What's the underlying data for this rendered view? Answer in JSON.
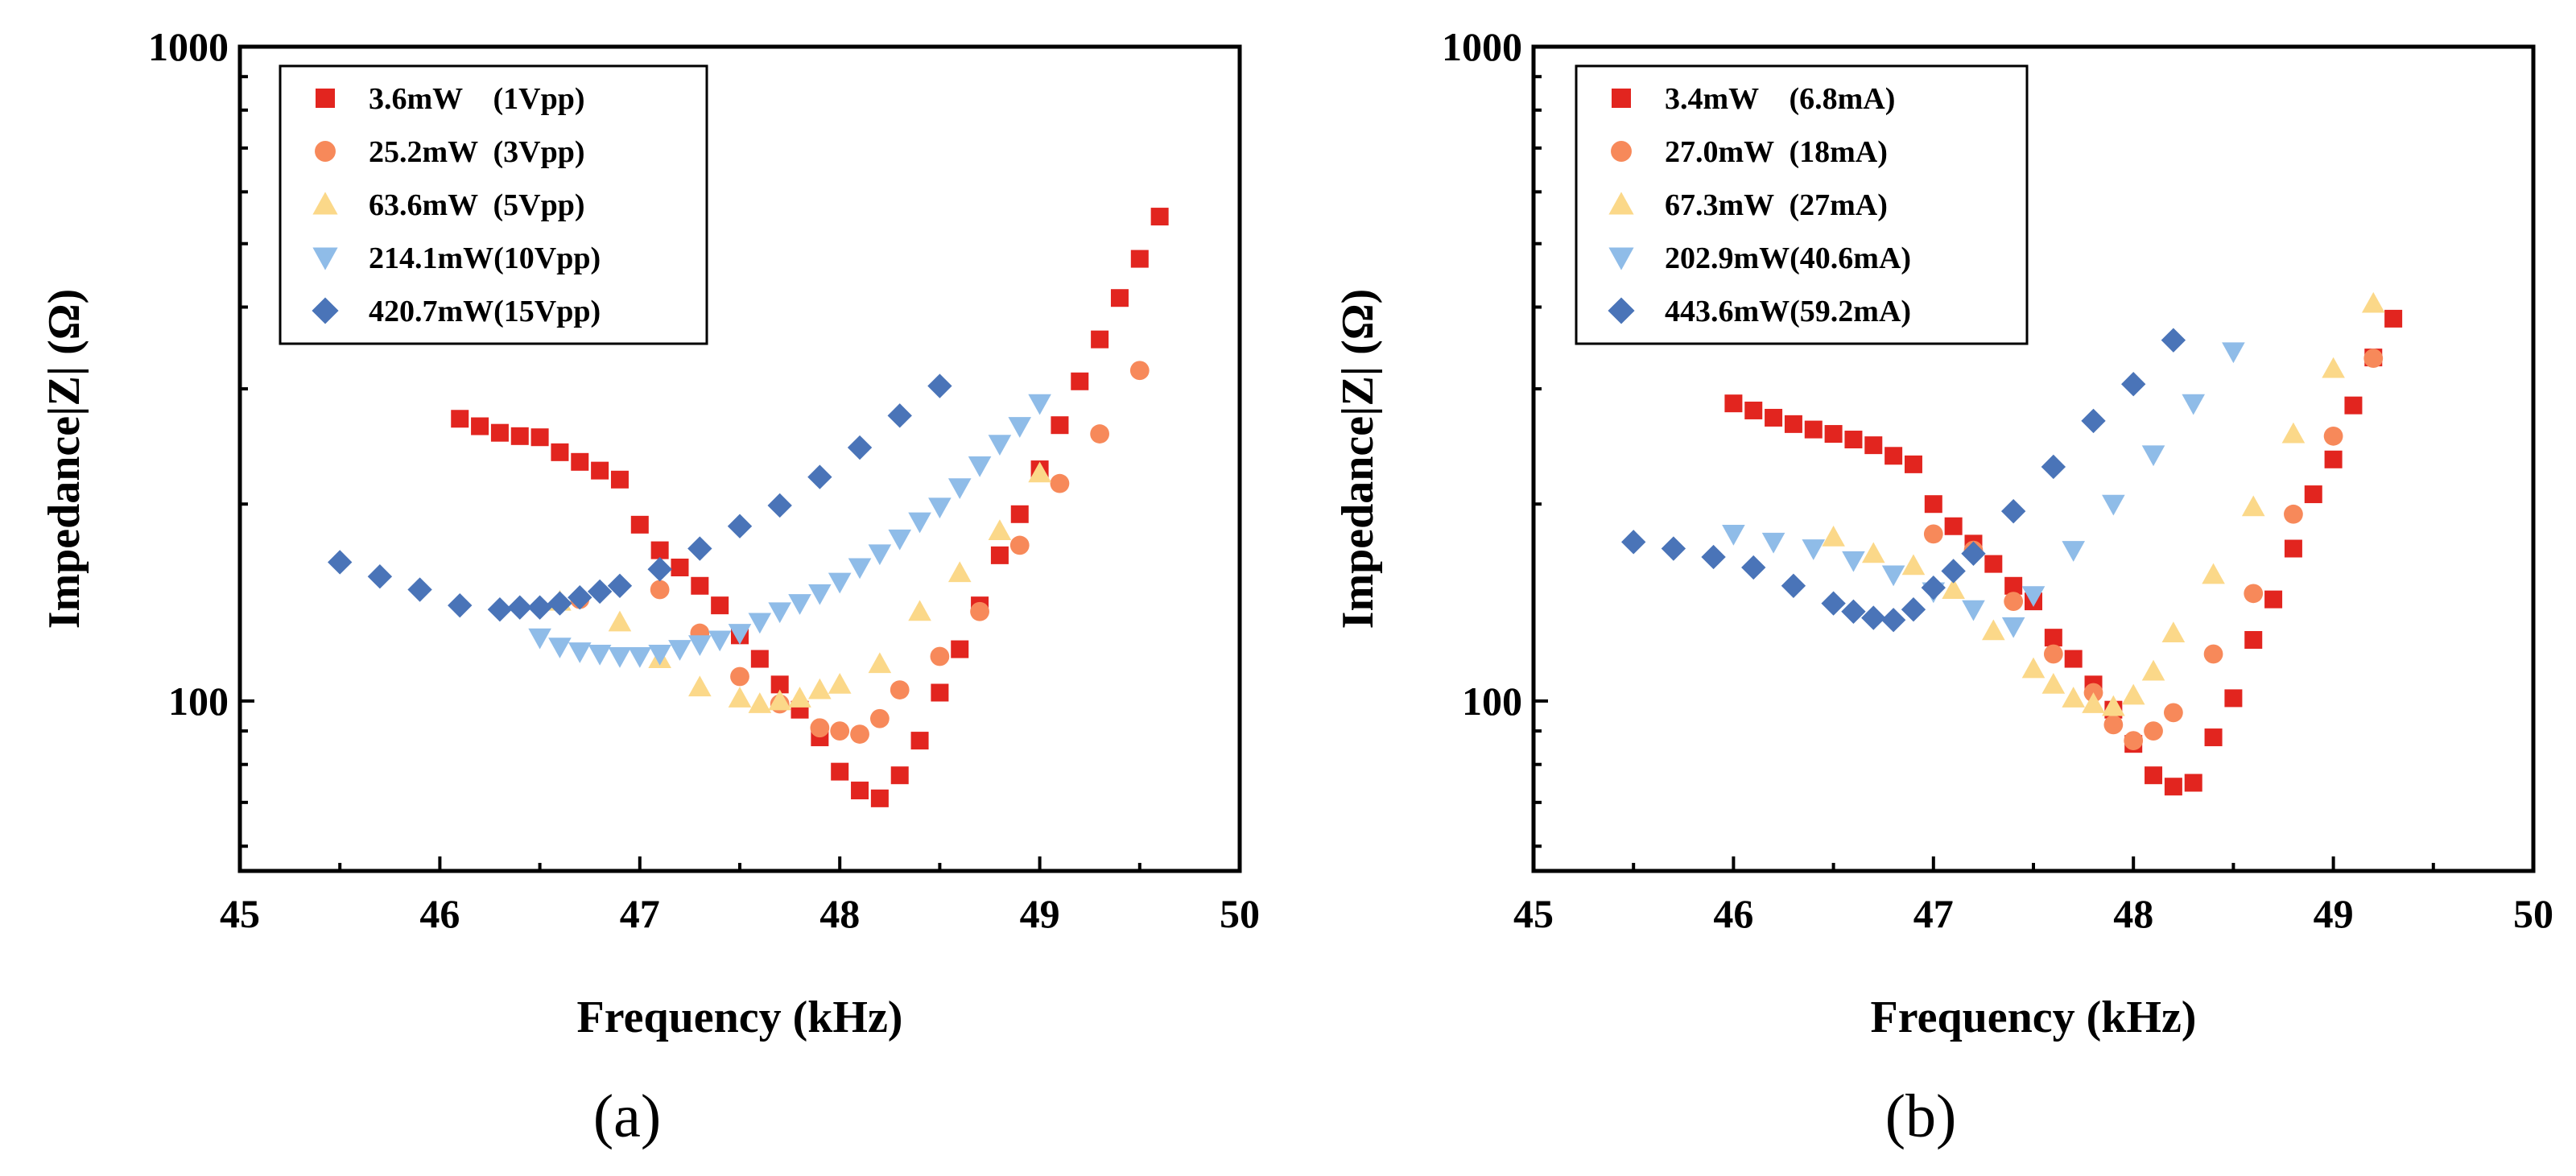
{
  "colors": {
    "s1": "#e2251f",
    "s2": "#f7895a",
    "s3": "#fbd889",
    "s4": "#8fbce8",
    "s5": "#4a74b8"
  },
  "chart_data": [
    {
      "type": "scatter",
      "panel_label": "(a)",
      "xlabel": "Frequency (kHz)",
      "ylabel": "Impedance|Z| (Ω)",
      "xlim": [
        45,
        50
      ],
      "ylim": [
        55,
        1000
      ],
      "yscale": "log",
      "xticks": [
        "45",
        "46",
        "47",
        "48",
        "49",
        "50"
      ],
      "yticks": [
        "100",
        "1000"
      ],
      "legend_position": "top-left",
      "series": [
        {
          "name": "3.6mW    (1Vpp)",
          "marker": "square",
          "color": "#e2251f",
          "x": [
            46.1,
            46.2,
            46.3,
            46.4,
            46.5,
            46.6,
            46.7,
            46.8,
            46.9,
            47.0,
            47.1,
            47.2,
            47.3,
            47.4,
            47.5,
            47.6,
            47.7,
            47.8,
            47.9,
            48.0,
            48.1,
            48.2,
            48.3,
            48.4,
            48.5,
            48.6,
            48.7,
            48.8,
            48.9,
            49.0,
            49.1,
            49.2,
            49.3,
            49.4,
            49.5,
            49.6
          ],
          "y": [
            270,
            263,
            257,
            254,
            253,
            240,
            232,
            225,
            218,
            186,
            170,
            160,
            150,
            140,
            126,
            116,
            106,
            97,
            88,
            78,
            73,
            71,
            77,
            87,
            103,
            120,
            140,
            167,
            193,
            226,
            264,
            308,
            357,
            413,
            474,
            550
          ]
        },
        {
          "name": "25.2mW  (3Vpp)",
          "marker": "circle",
          "color": "#f7895a",
          "x": [
            46.7,
            47.1,
            47.3,
            47.5,
            47.7,
            47.9,
            48.0,
            48.1,
            48.2,
            48.3,
            48.5,
            48.7,
            48.9,
            49.1,
            49.3,
            49.5
          ],
          "y": [
            143,
            148,
            127,
            109,
            99,
            91,
            90,
            89,
            94,
            104,
            117,
            137,
            173,
            215,
            256,
            320
          ]
        },
        {
          "name": "63.6mW  (5Vpp)",
          "marker": "triangle-up",
          "color": "#fbd889",
          "x": [
            46.6,
            46.9,
            47.1,
            47.3,
            47.5,
            47.6,
            47.7,
            47.8,
            47.9,
            48.0,
            48.2,
            48.4,
            48.6,
            48.8,
            49.0
          ],
          "y": [
            142,
            132,
            116,
            105,
            101,
            99,
            100,
            101,
            104,
            106,
            114,
            137,
            157,
            182,
            223
          ]
        },
        {
          "name": "214.1mW(10Vpp)",
          "marker": "triangle-down",
          "color": "#8fbce8",
          "x": [
            46.5,
            46.6,
            46.7,
            46.8,
            46.9,
            47.0,
            47.1,
            47.2,
            47.3,
            47.4,
            47.5,
            47.6,
            47.7,
            47.8,
            47.9,
            48.0,
            48.1,
            48.2,
            48.3,
            48.4,
            48.5,
            48.6,
            48.7,
            48.8,
            48.9,
            49.0
          ],
          "y": [
            125,
            121,
            119,
            118,
            117,
            117,
            118,
            120,
            122,
            124,
            127,
            132,
            137,
            141,
            146,
            152,
            160,
            168,
            177,
            188,
            198,
            212,
            229,
            247,
            263,
            285
          ]
        },
        {
          "name": "420.7mW(15Vpp)",
          "marker": "diamond",
          "color": "#4a74b8",
          "x": [
            45.5,
            45.7,
            45.9,
            46.1,
            46.3,
            46.4,
            46.5,
            46.6,
            46.7,
            46.8,
            46.9,
            47.1,
            47.3,
            47.5,
            47.7,
            47.9,
            48.1,
            48.3,
            48.5
          ],
          "y": [
            163,
            155,
            148,
            140,
            138,
            139,
            139,
            141,
            144,
            147,
            150,
            159,
            171,
            185,
            199,
            220,
            244,
            273,
            303
          ]
        }
      ]
    },
    {
      "type": "scatter",
      "panel_label": "(b)",
      "xlabel": "Frequency (kHz)",
      "ylabel": "Impedance|Z| (Ω)",
      "xlim": [
        45,
        50
      ],
      "ylim": [
        55,
        1000
      ],
      "yscale": "log",
      "xticks": [
        "45",
        "46",
        "47",
        "48",
        "49",
        "50"
      ],
      "yticks": [
        "100",
        "1000"
      ],
      "legend_position": "top-left",
      "series": [
        {
          "name": "3.4mW    (6.8mA)",
          "marker": "square",
          "color": "#e2251f",
          "x": [
            46.0,
            46.1,
            46.2,
            46.3,
            46.4,
            46.5,
            46.6,
            46.7,
            46.8,
            46.9,
            47.0,
            47.1,
            47.2,
            47.3,
            47.4,
            47.5,
            47.6,
            47.7,
            47.8,
            47.9,
            48.0,
            48.1,
            48.2,
            48.3,
            48.4,
            48.5,
            48.6,
            48.7,
            48.8,
            48.9,
            49.0,
            49.1,
            49.2,
            49.3
          ],
          "y": [
            285,
            278,
            271,
            265,
            260,
            256,
            251,
            246,
            237,
            230,
            200,
            185,
            174,
            162,
            150,
            142,
            125,
            116,
            106,
            97,
            86,
            77,
            74,
            75,
            88,
            101,
            124,
            143,
            171,
            207,
            234,
            283,
            335,
            384
          ]
        },
        {
          "name": "27.0mW  (18mA)",
          "marker": "circle",
          "color": "#f7895a",
          "x": [
            47.0,
            47.2,
            47.4,
            47.6,
            47.8,
            47.9,
            48.0,
            48.1,
            48.2,
            48.4,
            48.6,
            48.8,
            49.0,
            49.2
          ],
          "y": [
            180,
            170,
            142,
            118,
            103,
            92,
            87,
            90,
            96,
            118,
            146,
            193,
            254,
            334
          ]
        },
        {
          "name": "67.3mW  (27mA)",
          "marker": "triangle-up",
          "color": "#fbd889",
          "x": [
            46.5,
            46.7,
            46.9,
            47.1,
            47.3,
            47.5,
            47.6,
            47.7,
            47.8,
            47.9,
            48.0,
            48.1,
            48.2,
            48.4,
            48.6,
            48.8,
            49.0,
            49.2
          ],
          "y": [
            178,
            168,
            161,
            148,
            128,
            112,
            106,
            101,
            99,
            98,
            102,
            111,
            127,
            156,
            198,
            256,
            322,
            405
          ]
        },
        {
          "name": "202.9mW(40.6mA)",
          "marker": "triangle-down",
          "color": "#8fbce8",
          "x": [
            46.0,
            46.2,
            46.4,
            46.6,
            46.8,
            47.0,
            47.2,
            47.4,
            47.5,
            47.7,
            47.9,
            48.1,
            48.3,
            48.5
          ],
          "y": [
            180,
            175,
            171,
            164,
            156,
            147,
            138,
            130,
            145,
            170,
            200,
            238,
            285,
            342
          ]
        },
        {
          "name": "443.6mW(59.2mA)",
          "marker": "diamond",
          "color": "#4a74b8",
          "x": [
            45.5,
            45.7,
            45.9,
            46.1,
            46.3,
            46.5,
            46.6,
            46.7,
            46.8,
            46.9,
            47.0,
            47.1,
            47.2,
            47.4,
            47.6,
            47.8,
            48.0,
            48.2
          ],
          "y": [
            175,
            171,
            166,
            160,
            150,
            141,
            137,
            134,
            133,
            138,
            149,
            158,
            168,
            195,
            228,
            268,
            305,
            356
          ]
        }
      ]
    }
  ]
}
